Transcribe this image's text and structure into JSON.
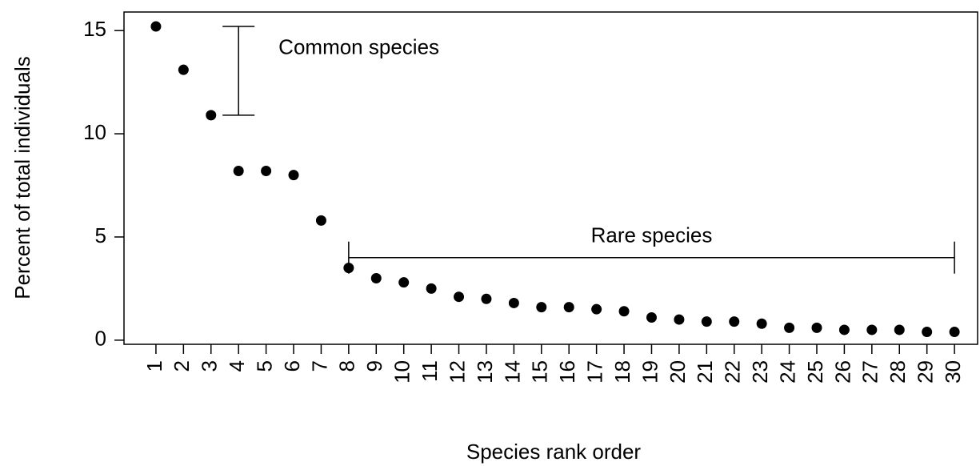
{
  "chart_data": {
    "type": "scatter",
    "x_label": "Species rank order",
    "y_label": "Percent of total individuals",
    "x": [
      1,
      2,
      3,
      4,
      5,
      6,
      7,
      8,
      9,
      10,
      11,
      12,
      13,
      14,
      15,
      16,
      17,
      18,
      19,
      20,
      21,
      22,
      23,
      24,
      25,
      26,
      27,
      28,
      29,
      30
    ],
    "series": [
      {
        "color": "#000000",
        "values": [
          15.2,
          13.1,
          10.9,
          8.2,
          8.2,
          8.0,
          5.8,
          3.5,
          3.0,
          2.8,
          2.5,
          2.1,
          2.0,
          1.8,
          1.6,
          1.6,
          1.5,
          1.4,
          1.1,
          1.0,
          0.9,
          0.9,
          0.8,
          0.6,
          0.6,
          0.5,
          0.5,
          0.5,
          0.4,
          0.4
        ]
      }
    ],
    "xlim": [
      -0.16,
      30.84
    ],
    "ylim": [
      -0.2,
      15.9
    ],
    "xticks": [
      1,
      2,
      3,
      4,
      5,
      6,
      7,
      8,
      9,
      10,
      11,
      12,
      13,
      14,
      15,
      16,
      17,
      18,
      19,
      20,
      21,
      22,
      23,
      24,
      25,
      26,
      27,
      28,
      29,
      30
    ],
    "yticks": [
      0,
      5,
      10,
      15
    ],
    "annotations": [
      {
        "text": "Common species",
        "x": 4,
        "y_span": [
          10.9,
          15.2
        ]
      },
      {
        "text": "Rare species",
        "y": 4,
        "x_span": [
          8,
          30
        ]
      }
    ]
  }
}
